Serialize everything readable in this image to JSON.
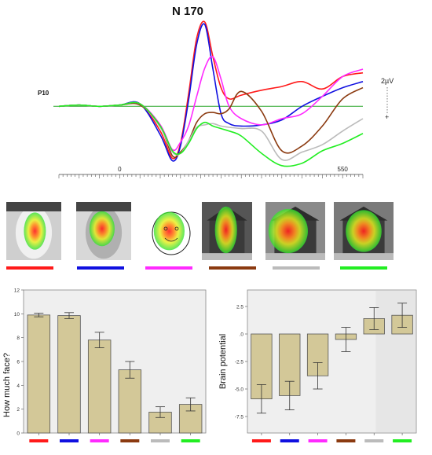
{
  "figure": {
    "title": "N 170"
  },
  "conditions": [
    {
      "color": "#ff1a1a",
      "thumbnail": "human-face-photo-heatmap"
    },
    {
      "color": "#1010e0",
      "thumbnail": "mannequin-face-photo-heatmap"
    },
    {
      "color": "#ff2aff",
      "thumbnail": "smiley-drawing-heatmap"
    },
    {
      "color": "#8b3a10",
      "thumbnail": "house-facade-dark-heatmap"
    },
    {
      "color": "#bbbbbb",
      "thumbnail": "house-facade-light-heatmap"
    },
    {
      "color": "#22ee22",
      "thumbnail": "house-tree-heatmap"
    }
  ],
  "chart_data": [
    {
      "type": "line",
      "title": "N 170",
      "xlabel": "",
      "ylabel": "",
      "x_ticks": [
        "0",
        "550"
      ],
      "y_annotation_label": "P10",
      "scale_bar_label": "2µV",
      "scale_bar_sign": "+",
      "xlim": [
        -150,
        600
      ],
      "ylim": [
        -5,
        7
      ],
      "grid": false,
      "legend": "none",
      "x": [
        -150,
        -100,
        -50,
        0,
        50,
        100,
        130,
        150,
        170,
        190,
        210,
        230,
        250,
        270,
        300,
        350,
        400,
        450,
        500,
        550,
        600
      ],
      "series": [
        {
          "color": "#ff1a1a",
          "values": [
            0.0,
            0.1,
            0.0,
            0.1,
            0.2,
            -2.0,
            -4.2,
            -3.0,
            1.0,
            5.5,
            6.8,
            4.0,
            1.5,
            0.6,
            0.9,
            1.3,
            1.6,
            2.0,
            1.4,
            2.4,
            2.7
          ]
        },
        {
          "color": "#1010e0",
          "values": [
            0.0,
            0.1,
            0.0,
            0.1,
            0.2,
            -2.3,
            -4.4,
            -3.2,
            0.5,
            5.0,
            6.6,
            3.0,
            -0.6,
            -1.4,
            -1.6,
            -1.5,
            -1.1,
            0.0,
            0.8,
            1.5,
            2.0
          ]
        },
        {
          "color": "#ff2aff",
          "values": [
            0.0,
            0.1,
            0.0,
            0.1,
            0.2,
            -1.5,
            -3.5,
            -2.9,
            -1.6,
            0.8,
            3.1,
            4.0,
            2.2,
            0.0,
            -1.0,
            -1.5,
            -1.0,
            -0.6,
            0.8,
            2.4,
            3.0
          ]
        },
        {
          "color": "#8b3a10",
          "values": [
            0.0,
            0.1,
            0.0,
            0.1,
            0.1,
            -1.6,
            -4.0,
            -3.7,
            -2.8,
            -1.3,
            -0.6,
            -0.5,
            -0.6,
            -0.2,
            1.2,
            -0.4,
            -3.6,
            -3.2,
            -1.6,
            0.6,
            1.5
          ]
        },
        {
          "color": "#bbbbbb",
          "values": [
            0.0,
            0.1,
            0.0,
            0.1,
            0.2,
            -1.7,
            -3.7,
            -3.8,
            -2.8,
            -1.7,
            -1.5,
            -1.4,
            -1.6,
            -1.7,
            -1.8,
            -2.0,
            -4.3,
            -3.7,
            -3.1,
            -2.0,
            -1.0
          ]
        },
        {
          "color": "#22ee22",
          "values": [
            0.0,
            0.1,
            0.0,
            0.1,
            0.2,
            -1.6,
            -3.6,
            -3.8,
            -3.0,
            -1.8,
            -1.3,
            -1.6,
            -1.8,
            -2.0,
            -2.4,
            -3.8,
            -4.8,
            -4.6,
            -3.6,
            -3.0,
            -2.2
          ]
        }
      ]
    },
    {
      "type": "bar",
      "title": "",
      "xlabel": "",
      "ylabel": "How much face?",
      "ylim": [
        0,
        12
      ],
      "y_ticks": [
        "0",
        "2",
        "4",
        "6",
        "8",
        "10",
        "12"
      ],
      "grid": false,
      "legend": "none",
      "categories": [
        "#ff1a1a",
        "#1010e0",
        "#ff2aff",
        "#8b3a10",
        "#bbbbbb",
        "#22ee22"
      ],
      "values": [
        9.9,
        9.85,
        7.8,
        5.3,
        1.75,
        2.4
      ],
      "error": [
        0.15,
        0.25,
        0.65,
        0.7,
        0.45,
        0.55
      ]
    },
    {
      "type": "bar",
      "title": "",
      "xlabel": "",
      "ylabel": "Brain potential",
      "ylim": [
        -9,
        4
      ],
      "y_ticks": [
        "-7.5",
        "-5.0",
        "-2.5",
        ".0",
        "2.5"
      ],
      "grid": false,
      "legend": "none",
      "categories": [
        "#ff1a1a",
        "#1010e0",
        "#ff2aff",
        "#8b3a10",
        "#bbbbbb",
        "#22ee22"
      ],
      "values": [
        -5.9,
        -5.6,
        -3.8,
        -0.5,
        1.4,
        1.7
      ],
      "error": [
        1.3,
        1.3,
        1.2,
        1.1,
        1.0,
        1.1
      ]
    }
  ]
}
